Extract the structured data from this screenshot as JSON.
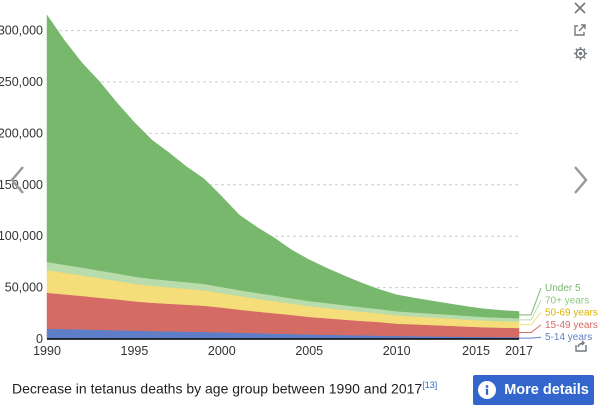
{
  "chart_data": {
    "type": "area",
    "stacked": true,
    "x": [
      1990,
      1991,
      1992,
      1993,
      1994,
      1995,
      1996,
      1997,
      1998,
      1999,
      2000,
      2001,
      2002,
      2003,
      2004,
      2005,
      2006,
      2007,
      2008,
      2009,
      2010,
      2011,
      2012,
      2013,
      2014,
      2015,
      2016,
      2017
    ],
    "x_ticks": [
      1990,
      1995,
      2000,
      2005,
      2010,
      2015,
      2017
    ],
    "y_ticks": [
      0,
      50000,
      100000,
      150000,
      200000,
      250000,
      300000
    ],
    "y_tick_labels": [
      "0",
      "50,000",
      "100,000",
      "150,000",
      "200,000",
      "250,000",
      "300,000"
    ],
    "ylim": [
      0,
      320000
    ],
    "xlim": [
      1990,
      2017
    ],
    "grid": "horizontal dashed",
    "legend_position": "right of last data point",
    "series": [
      {
        "name": "5-14 years",
        "color": "#5e7fc7",
        "values": [
          10000,
          9700,
          9400,
          9000,
          8600,
          8200,
          7800,
          7500,
          7200,
          6900,
          6600,
          6100,
          5700,
          5300,
          4900,
          4500,
          4200,
          3900,
          3600,
          3300,
          3000,
          2800,
          2600,
          2400,
          2200,
          2000,
          1900,
          1800
        ]
      },
      {
        "name": "15-49 years",
        "color": "#d46b64",
        "values": [
          35000,
          33800,
          32500,
          31200,
          30000,
          28500,
          27500,
          26800,
          26200,
          25500,
          24000,
          22500,
          21000,
          19800,
          18500,
          17000,
          16000,
          15000,
          14000,
          13200,
          12000,
          11500,
          11000,
          10500,
          10000,
          9500,
          9200,
          9000
        ]
      },
      {
        "name": "50-69 years",
        "color": "#f5dd7a",
        "values": [
          22000,
          21000,
          20000,
          19000,
          18000,
          17000,
          16500,
          16000,
          15500,
          15000,
          14000,
          13200,
          12500,
          11800,
          11000,
          10500,
          10000,
          9500,
          9000,
          8500,
          8000,
          7700,
          7400,
          7100,
          6800,
          6500,
          6300,
          6100
        ]
      },
      {
        "name": "70+ years",
        "color": "#b8dcac",
        "values": [
          8000,
          7800,
          7600,
          7400,
          7200,
          7000,
          6800,
          6600,
          6400,
          6200,
          6000,
          5800,
          5600,
          5400,
          5200,
          5000,
          4800,
          4600,
          4400,
          4200,
          4000,
          3900,
          3800,
          3700,
          3600,
          3500,
          3400,
          3300
        ]
      },
      {
        "name": "Under 5",
        "color": "#77b86d",
        "values": [
          240000,
          218000,
          199000,
          184000,
          166000,
          150000,
          135000,
          124000,
          112000,
          102000,
          88000,
          73000,
          64000,
          56000,
          47000,
          40000,
          34000,
          28500,
          23500,
          19000,
          16000,
          14000,
          12300,
          10600,
          9000,
          7800,
          7000,
          6500
        ]
      }
    ]
  },
  "caption": {
    "text": "Decrease in tetanus deaths by age group between 1990 and 2017",
    "ref": "[13]"
  },
  "more_button": {
    "label": "More details",
    "icon": "info-icon"
  },
  "controls": {
    "close": "close-icon",
    "expand": "expand-icon",
    "settings": "gear-icon",
    "share": "share-icon",
    "prev": "chevron-left-icon",
    "next": "chevron-right-icon"
  },
  "colors": {
    "accent": "#3366cc",
    "axis": "#000000",
    "grid": "#cccccc"
  }
}
